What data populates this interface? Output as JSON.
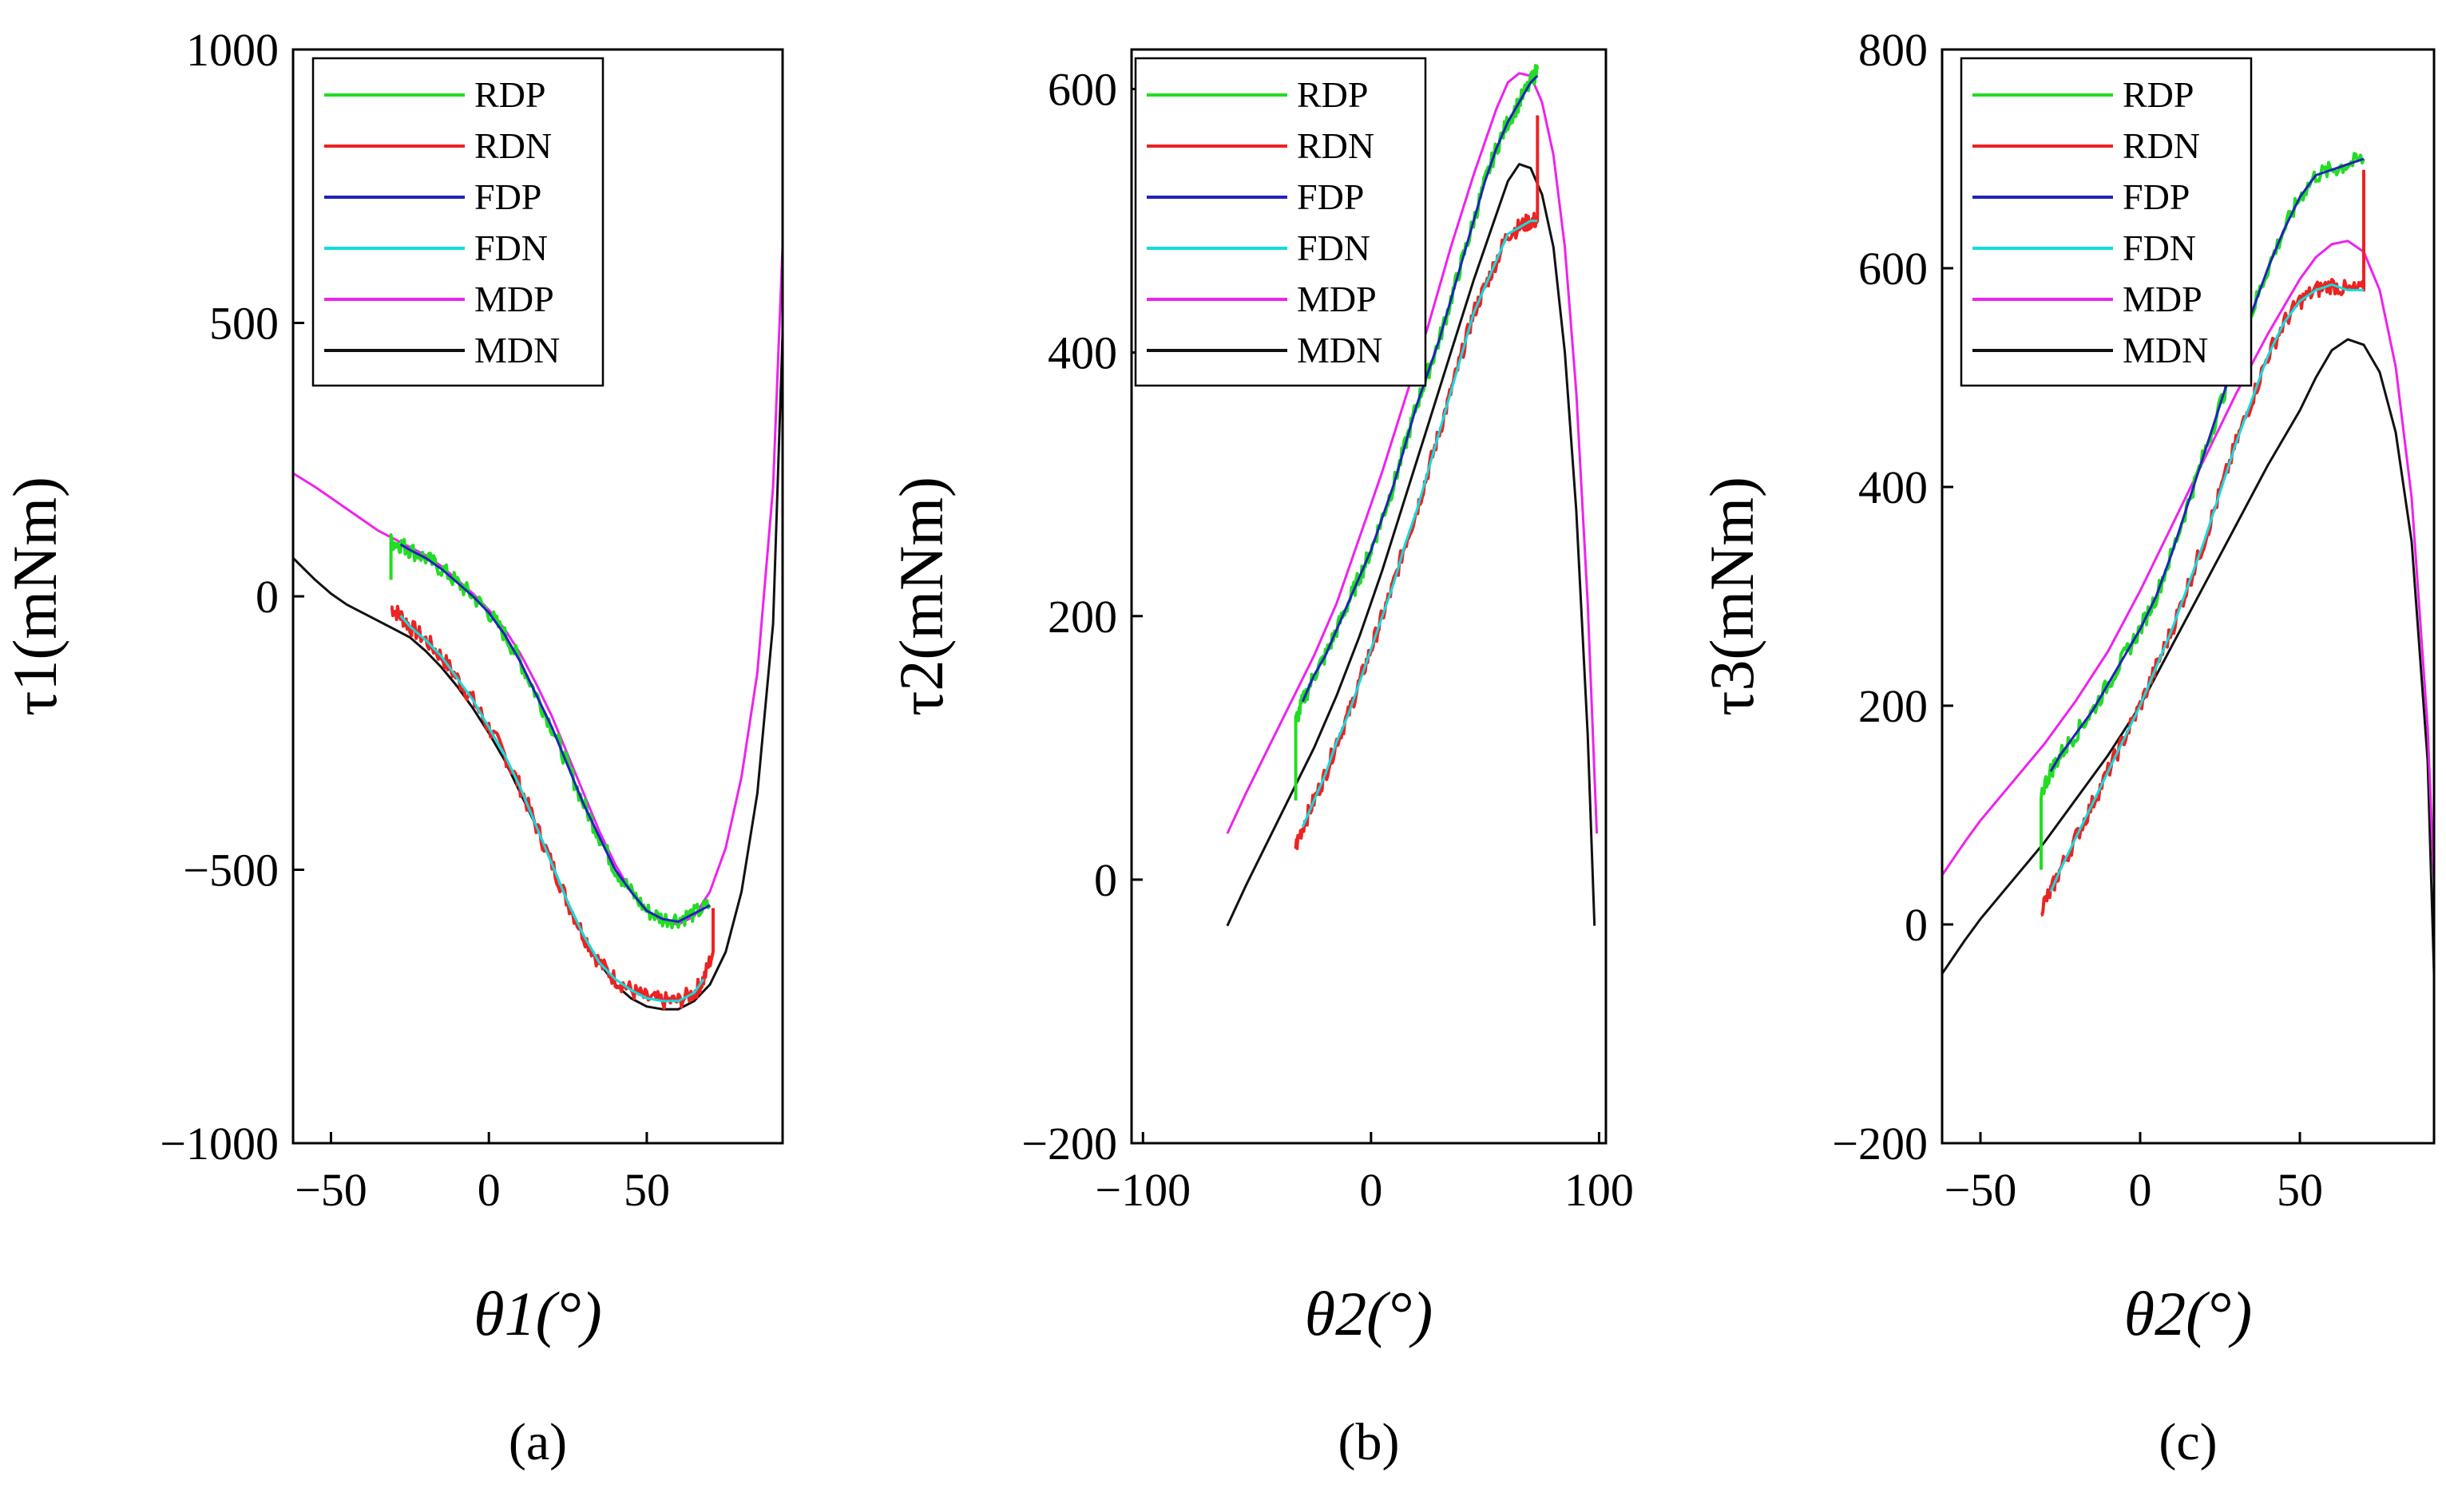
{
  "colors": {
    "RDP": "#22dd22",
    "RDN": "#ee2222",
    "FDP": "#2222bb",
    "FDN": "#11dddd",
    "MDP": "#ee22ee",
    "MDN": "#111111"
  },
  "chart_data": [
    {
      "type": "line",
      "panel_label": "(a)",
      "ylabel": "τ1(mNm)",
      "xlabel": "θ1(°)",
      "xlim": [
        -62,
        93
      ],
      "ylim": [
        -1000,
        1000
      ],
      "xticks": [
        -50,
        0,
        50
      ],
      "yticks": [
        -1000,
        -500,
        0,
        500,
        1000
      ],
      "grid": false,
      "legend_position": "top-left",
      "series": [
        {
          "name": "RDP",
          "x": [
            -31,
            -31,
            -28,
            -25,
            -20,
            -15,
            -10,
            -5,
            0,
            5,
            10,
            15,
            20,
            25,
            30,
            35,
            40,
            45,
            50,
            55,
            60,
            65,
            70
          ],
          "y": [
            30,
            100,
            95,
            85,
            70,
            50,
            25,
            0,
            -30,
            -70,
            -120,
            -180,
            -240,
            -310,
            -380,
            -440,
            -500,
            -540,
            -575,
            -590,
            -590,
            -580,
            -565
          ]
        },
        {
          "name": "RDN",
          "x": [
            -31,
            -28,
            -25,
            -20,
            -15,
            -10,
            -5,
            0,
            5,
            10,
            15,
            20,
            25,
            30,
            35,
            40,
            45,
            50,
            55,
            60,
            65,
            68,
            71,
            71
          ],
          "y": [
            -20,
            -35,
            -55,
            -80,
            -110,
            -150,
            -190,
            -240,
            -290,
            -350,
            -420,
            -490,
            -560,
            -620,
            -670,
            -700,
            -720,
            -735,
            -740,
            -740,
            -725,
            -700,
            -650,
            -570
          ]
        },
        {
          "name": "FDP",
          "x": [
            -28,
            -25,
            -20,
            -15,
            -10,
            -5,
            0,
            5,
            10,
            15,
            20,
            25,
            30,
            35,
            40,
            45,
            50,
            55,
            60,
            65,
            70
          ],
          "y": [
            95,
            85,
            70,
            50,
            25,
            0,
            -30,
            -70,
            -120,
            -180,
            -240,
            -310,
            -380,
            -440,
            -500,
            -540,
            -575,
            -590,
            -595,
            -580,
            -565
          ]
        },
        {
          "name": "FDN",
          "x": [
            -28,
            -25,
            -20,
            -15,
            -10,
            -5,
            0,
            5,
            10,
            15,
            20,
            25,
            30,
            35,
            40,
            45,
            50,
            55,
            60,
            65,
            68
          ],
          "y": [
            -35,
            -55,
            -80,
            -110,
            -150,
            -190,
            -240,
            -290,
            -350,
            -420,
            -490,
            -560,
            -620,
            -670,
            -700,
            -720,
            -735,
            -740,
            -740,
            -725,
            -700
          ]
        },
        {
          "name": "MDP",
          "x": [
            -62,
            -55,
            -50,
            -45,
            -40,
            -35,
            -30,
            -25,
            -20,
            -15,
            -10,
            -5,
            0,
            5,
            10,
            15,
            20,
            25,
            30,
            35,
            40,
            45,
            50,
            55,
            60,
            65,
            70,
            75,
            80,
            85,
            90,
            93
          ],
          "y": [
            225,
            200,
            180,
            160,
            140,
            120,
            105,
            90,
            75,
            55,
            30,
            5,
            -25,
            -60,
            -105,
            -160,
            -220,
            -290,
            -360,
            -430,
            -490,
            -540,
            -575,
            -595,
            -600,
            -585,
            -540,
            -460,
            -330,
            -140,
            200,
            640
          ]
        },
        {
          "name": "MDN",
          "x": [
            -62,
            -55,
            -50,
            -45,
            -40,
            -35,
            -30,
            -25,
            -20,
            -15,
            -10,
            -5,
            0,
            5,
            10,
            15,
            20,
            25,
            30,
            35,
            40,
            45,
            50,
            55,
            60,
            65,
            70,
            75,
            80,
            85,
            90,
            93
          ],
          "y": [
            70,
            30,
            5,
            -15,
            -30,
            -45,
            -60,
            -75,
            -100,
            -130,
            -165,
            -205,
            -250,
            -300,
            -360,
            -420,
            -490,
            -560,
            -620,
            -670,
            -710,
            -735,
            -750,
            -755,
            -755,
            -740,
            -710,
            -650,
            -540,
            -360,
            -50,
            480
          ]
        }
      ]
    },
    {
      "type": "line",
      "panel_label": "(b)",
      "ylabel": "τ2(mNm)",
      "xlabel": "θ2(°)",
      "xlim": [
        -105,
        103
      ],
      "ylim": [
        -200,
        630
      ],
      "xticks": [
        -100,
        0,
        100
      ],
      "yticks": [
        -200,
        0,
        200,
        400,
        600
      ],
      "grid": false,
      "legend_position": "top-left",
      "series": [
        {
          "name": "RDP",
          "x": [
            -33,
            -33,
            -30,
            -25,
            -20,
            -15,
            -10,
            -5,
            0,
            5,
            10,
            15,
            20,
            25,
            30,
            35,
            40,
            45,
            50,
            55,
            60,
            65,
            70,
            73
          ],
          "y": [
            60,
            120,
            135,
            155,
            170,
            190,
            210,
            230,
            250,
            275,
            300,
            330,
            360,
            385,
            410,
            440,
            470,
            500,
            530,
            555,
            575,
            590,
            605,
            615
          ]
        },
        {
          "name": "RDN",
          "x": [
            -33,
            -30,
            -25,
            -20,
            -15,
            -10,
            -5,
            0,
            5,
            10,
            15,
            20,
            25,
            30,
            35,
            40,
            45,
            50,
            55,
            60,
            65,
            70,
            73,
            73
          ],
          "y": [
            25,
            40,
            60,
            80,
            105,
            125,
            150,
            175,
            200,
            225,
            255,
            280,
            310,
            340,
            370,
            400,
            430,
            450,
            470,
            490,
            495,
            500,
            500,
            580
          ]
        },
        {
          "name": "FDP",
          "x": [
            -30,
            -25,
            -20,
            -15,
            -10,
            -5,
            0,
            5,
            10,
            15,
            20,
            25,
            30,
            35,
            40,
            45,
            50,
            55,
            60,
            65,
            70,
            73
          ],
          "y": [
            135,
            155,
            170,
            190,
            210,
            230,
            250,
            275,
            300,
            330,
            360,
            385,
            410,
            440,
            470,
            500,
            530,
            555,
            575,
            590,
            605,
            610
          ]
        },
        {
          "name": "FDN",
          "x": [
            -30,
            -25,
            -20,
            -15,
            -10,
            -5,
            0,
            5,
            10,
            15,
            20,
            25,
            30,
            35,
            40,
            45,
            50,
            55,
            60,
            65,
            70,
            73
          ],
          "y": [
            40,
            60,
            80,
            105,
            125,
            150,
            175,
            200,
            225,
            255,
            280,
            310,
            340,
            370,
            400,
            430,
            450,
            470,
            490,
            495,
            500,
            500
          ]
        },
        {
          "name": "MDP",
          "x": [
            -63,
            -55,
            -45,
            -35,
            -25,
            -15,
            -5,
            0,
            5,
            15,
            25,
            35,
            45,
            55,
            60,
            65,
            70,
            75,
            80,
            85,
            90,
            95,
            99
          ],
          "y": [
            35,
            65,
            100,
            135,
            170,
            210,
            260,
            285,
            310,
            365,
            420,
            480,
            535,
            585,
            605,
            612,
            610,
            590,
            550,
            480,
            370,
            210,
            35
          ]
        },
        {
          "name": "MDN",
          "x": [
            -63,
            -55,
            -45,
            -35,
            -25,
            -15,
            -5,
            0,
            5,
            15,
            25,
            35,
            45,
            55,
            60,
            65,
            70,
            75,
            80,
            85,
            90,
            95,
            98
          ],
          "y": [
            -35,
            -5,
            30,
            65,
            100,
            140,
            185,
            210,
            235,
            290,
            345,
            400,
            455,
            505,
            530,
            543,
            540,
            520,
            480,
            400,
            280,
            110,
            -35
          ]
        }
      ]
    },
    {
      "type": "line",
      "panel_label": "(c)",
      "ylabel": "τ3(mNm)",
      "xlabel": "θ2(°)",
      "xlim": [
        -62,
        92
      ],
      "ylim": [
        -200,
        800
      ],
      "xticks": [
        -50,
        0,
        50
      ],
      "yticks": [
        -200,
        0,
        200,
        400,
        600,
        800
      ],
      "grid": false,
      "legend_position": "top-left",
      "series": [
        {
          "name": "RDP",
          "x": [
            -31,
            -31,
            -28,
            -25,
            -20,
            -15,
            -10,
            -5,
            0,
            5,
            10,
            15,
            20,
            25,
            30,
            35,
            40,
            45,
            50,
            55,
            60,
            65,
            70
          ],
          "y": [
            50,
            120,
            140,
            155,
            175,
            195,
            220,
            245,
            270,
            300,
            340,
            385,
            430,
            475,
            520,
            560,
            600,
            635,
            665,
            685,
            690,
            695,
            700
          ]
        },
        {
          "name": "RDN",
          "x": [
            -31,
            -28,
            -25,
            -20,
            -15,
            -10,
            -5,
            0,
            5,
            10,
            15,
            20,
            25,
            30,
            35,
            40,
            45,
            50,
            55,
            60,
            65,
            70,
            70
          ],
          "y": [
            15,
            30,
            50,
            80,
            110,
            140,
            170,
            200,
            235,
            270,
            310,
            350,
            395,
            440,
            480,
            520,
            550,
            570,
            580,
            585,
            580,
            580,
            690
          ]
        },
        {
          "name": "FDP",
          "x": [
            -28,
            -25,
            -20,
            -15,
            -10,
            -5,
            0,
            5,
            10,
            15,
            20,
            25,
            30,
            35,
            40,
            45,
            50,
            55,
            60,
            65,
            70
          ],
          "y": [
            140,
            155,
            175,
            195,
            220,
            245,
            270,
            300,
            340,
            385,
            430,
            475,
            520,
            560,
            600,
            635,
            665,
            685,
            690,
            695,
            700
          ]
        },
        {
          "name": "FDN",
          "x": [
            -28,
            -25,
            -20,
            -15,
            -10,
            -5,
            0,
            5,
            10,
            15,
            20,
            25,
            30,
            35,
            40,
            45,
            50,
            55,
            60,
            65,
            70
          ],
          "y": [
            30,
            50,
            80,
            110,
            140,
            170,
            200,
            235,
            270,
            310,
            350,
            395,
            440,
            480,
            520,
            550,
            570,
            580,
            585,
            580,
            580
          ]
        },
        {
          "name": "MDP",
          "x": [
            -62,
            -55,
            -50,
            -40,
            -30,
            -20,
            -10,
            0,
            10,
            20,
            30,
            40,
            50,
            55,
            60,
            65,
            70,
            75,
            80,
            85,
            90,
            92
          ],
          "y": [
            45,
            75,
            95,
            130,
            165,
            205,
            250,
            305,
            365,
            425,
            485,
            540,
            590,
            610,
            622,
            625,
            615,
            580,
            510,
            390,
            180,
            40
          ]
        },
        {
          "name": "MDN",
          "x": [
            -62,
            -55,
            -50,
            -40,
            -30,
            -20,
            -10,
            0,
            10,
            20,
            30,
            40,
            50,
            55,
            60,
            65,
            70,
            75,
            80,
            85,
            90,
            92
          ],
          "y": [
            -45,
            -15,
            5,
            40,
            75,
            115,
            155,
            200,
            255,
            310,
            365,
            420,
            470,
            500,
            525,
            535,
            530,
            505,
            450,
            350,
            150,
            -45
          ]
        }
      ]
    }
  ]
}
